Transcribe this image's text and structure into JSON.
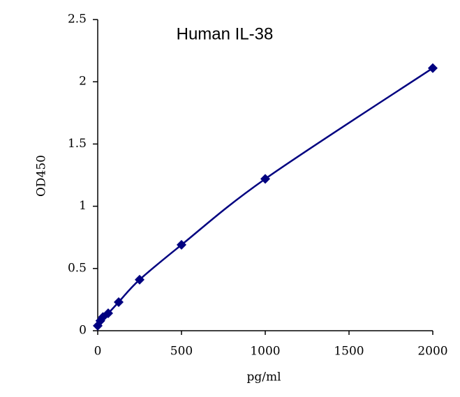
{
  "chart_data": {
    "type": "scatter",
    "title": "Human   IL-38",
    "x_label": "pg/ml",
    "y_label": "OD450",
    "x": [
      0,
      15.6,
      31.25,
      62.5,
      125,
      250,
      500,
      1000,
      2000
    ],
    "values": [
      0.04,
      0.08,
      0.11,
      0.14,
      0.23,
      0.41,
      0.69,
      1.22,
      2.11
    ],
    "color": "#000080",
    "line": true,
    "marker": "diamond",
    "xlim": [
      0,
      2000
    ],
    "xticks": [
      0,
      500,
      1000,
      1500,
      2000
    ],
    "ylim": [
      0,
      2.5
    ],
    "yticks": [
      0,
      0.5,
      1,
      1.5,
      2,
      2.5
    ],
    "grid": false
  }
}
